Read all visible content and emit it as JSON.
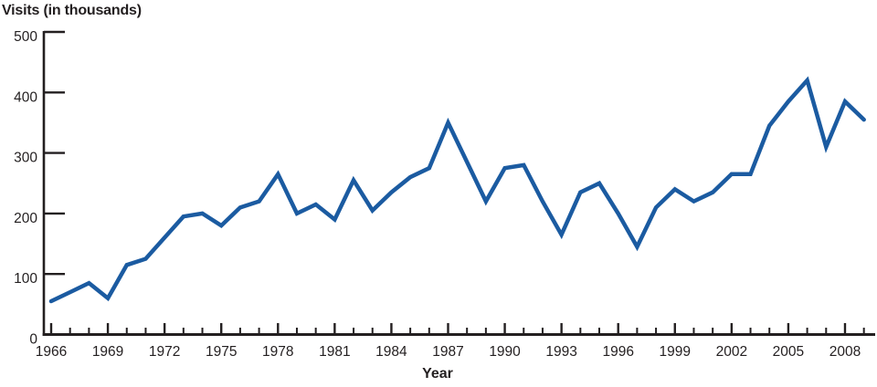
{
  "chart_data": {
    "type": "line",
    "title": "Visits (in thousands)",
    "xlabel": "Year",
    "ylabel": "Visits (in thousands)",
    "series_name": "Visits",
    "x": [
      1966,
      1967,
      1968,
      1969,
      1970,
      1971,
      1972,
      1973,
      1974,
      1975,
      1976,
      1977,
      1978,
      1979,
      1980,
      1981,
      1982,
      1983,
      1984,
      1985,
      1986,
      1987,
      1988,
      1989,
      1990,
      1991,
      1992,
      1993,
      1994,
      1995,
      1996,
      1997,
      1998,
      1999,
      2000,
      2001,
      2002,
      2003,
      2004,
      2005,
      2006,
      2007,
      2008,
      2009
    ],
    "values": [
      55,
      70,
      85,
      60,
      115,
      125,
      160,
      195,
      200,
      180,
      210,
      220,
      265,
      200,
      215,
      190,
      255,
      205,
      235,
      260,
      275,
      350,
      285,
      220,
      275,
      280,
      220,
      165,
      235,
      250,
      200,
      145,
      210,
      240,
      220,
      235,
      265,
      265,
      345,
      385,
      420,
      310,
      385,
      355
    ],
    "xlim": [
      1966,
      2009.6
    ],
    "ylim": [
      0,
      500
    ],
    "yticks": [
      0,
      100,
      200,
      300,
      400,
      500
    ],
    "xtick_minor_interval": 1,
    "xtick_label_interval": 3,
    "xtick_labels": [
      "1966",
      "1969",
      "1972",
      "1975",
      "1978",
      "1981",
      "1984",
      "1987",
      "1990",
      "1993",
      "1996",
      "1999",
      "2002",
      "2005",
      "2008"
    ],
    "legend_position": "none",
    "grid": "off",
    "tick_style": "inward",
    "line_color": "#1b5ba1",
    "axis_color": "#231f20",
    "background_color": "#ffffff"
  }
}
